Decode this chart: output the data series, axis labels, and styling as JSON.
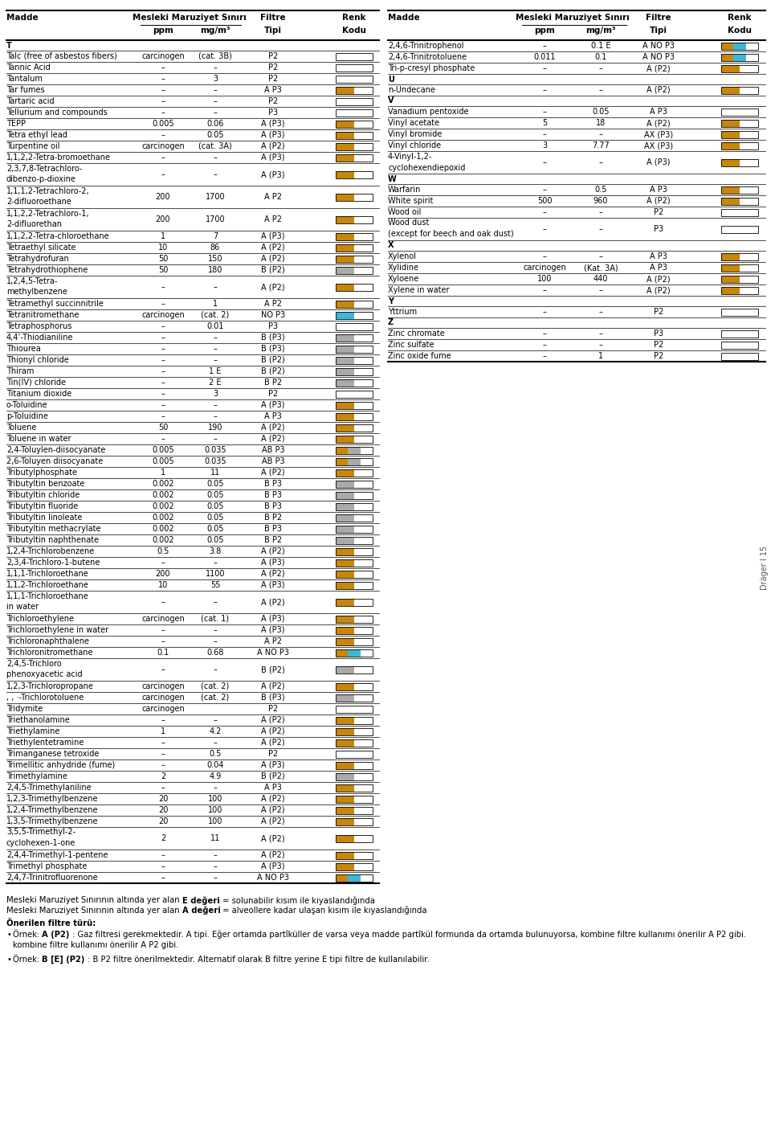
{
  "left_rows": [
    {
      "name": "T",
      "ppm": "",
      "mg": "",
      "filtre": "",
      "renk": "",
      "section": true
    },
    {
      "name": "Talc (free of asbestos fibers)",
      "ppm": "carcinogen",
      "mg": "(cat. 3B)",
      "filtre": "P2",
      "renk": "white"
    },
    {
      "name": "Tannic Acid",
      "ppm": "–",
      "mg": "–",
      "filtre": "P2",
      "renk": "white"
    },
    {
      "name": "Tantalum",
      "ppm": "–",
      "mg": "3",
      "filtre": "P2",
      "renk": "white"
    },
    {
      "name": "Tar fumes",
      "ppm": "–",
      "mg": "–",
      "filtre": "A P3",
      "renk": "brown_white"
    },
    {
      "name": "Tartaric acid",
      "ppm": "–",
      "mg": "–",
      "filtre": "P2",
      "renk": "white"
    },
    {
      "name": "Tellurium and compounds",
      "ppm": "–",
      "mg": "–",
      "filtre": "P3",
      "renk": "white"
    },
    {
      "name": "TEPP",
      "ppm": "0.005",
      "mg": "0.06",
      "filtre": "A (P3)",
      "renk": "brown_white"
    },
    {
      "name": "Tetra ethyl lead",
      "ppm": "–",
      "mg": "0.05",
      "filtre": "A (P3)",
      "renk": "brown_white"
    },
    {
      "name": "Turpentine oil",
      "ppm": "carcinogen",
      "mg": "(cat. 3A)",
      "filtre": "A (P2)",
      "renk": "brown_white"
    },
    {
      "name": "1,1,2,2-Tetra-bromoethane",
      "ppm": "–",
      "mg": "–",
      "filtre": "A (P3)",
      "renk": "brown_white"
    },
    {
      "name": "2,3,7,8-Tetrachloro-\ndibenzo-p-dioxine",
      "ppm": "–",
      "mg": "–",
      "filtre": "A (P3)",
      "renk": "brown_white"
    },
    {
      "name": "1,1,1,2-Tetrachloro-2,\n2-difluoroethane",
      "ppm": "200",
      "mg": "1700",
      "filtre": "A P2",
      "renk": "brown_white"
    },
    {
      "name": "1,1,2,2-Tetrachloro-1,\n2-difluorethan",
      "ppm": "200",
      "mg": "1700",
      "filtre": "A P2",
      "renk": "brown_white"
    },
    {
      "name": "1,1,2,2-Tetra-chloroethane",
      "ppm": "1",
      "mg": "7",
      "filtre": "A (P3)",
      "renk": "brown_white"
    },
    {
      "name": "Tetraethyl silicate",
      "ppm": "10",
      "mg": "86",
      "filtre": "A (P2)",
      "renk": "brown_white"
    },
    {
      "name": "Tetrahydrofuran",
      "ppm": "50",
      "mg": "150",
      "filtre": "A (P2)",
      "renk": "brown_white"
    },
    {
      "name": "Tetrahydrothiophene",
      "ppm": "50",
      "mg": "180",
      "filtre": "B (P2)",
      "renk": "gray_white"
    },
    {
      "name": "1,2,4,5-Tetra-\nmethylbenzene",
      "ppm": "–",
      "mg": "–",
      "filtre": "A (P2)",
      "renk": "brown_white"
    },
    {
      "name": "Tetramethyl succinnitrile",
      "ppm": "–",
      "mg": "1",
      "filtre": "A P2",
      "renk": "brown_white"
    },
    {
      "name": "Tetranitromethane",
      "ppm": "carcinogen",
      "mg": "(cat. 2)",
      "filtre": "NO P3",
      "renk": "blue_white"
    },
    {
      "name": "Tetraphosphorus",
      "ppm": "–",
      "mg": "0.01",
      "filtre": "P3",
      "renk": "white"
    },
    {
      "name": "4,4’-Thiodianiline",
      "ppm": "–",
      "mg": "–",
      "filtre": "B (P3)",
      "renk": "gray_white"
    },
    {
      "name": "Thiourea",
      "ppm": "–",
      "mg": "–",
      "filtre": "B (P3)",
      "renk": "gray_white"
    },
    {
      "name": "Thionyl chloride",
      "ppm": "–",
      "mg": "–",
      "filtre": "B (P2)",
      "renk": "gray_white"
    },
    {
      "name": "Thiram",
      "ppm": "–",
      "mg": "1 E",
      "filtre": "B (P2)",
      "renk": "gray_white"
    },
    {
      "name": "Tin(IV) chloride",
      "ppm": "–",
      "mg": "2 E",
      "filtre": "B P2",
      "renk": "gray_white"
    },
    {
      "name": "Titanium dioxide",
      "ppm": "–",
      "mg": "3",
      "filtre": "P2",
      "renk": "white"
    },
    {
      "name": "o-Toluidine",
      "ppm": "–",
      "mg": "–",
      "filtre": "A (P3)",
      "renk": "brown_white"
    },
    {
      "name": "p-Toluidine",
      "ppm": "–",
      "mg": "–",
      "filtre": "A P3",
      "renk": "brown_white"
    },
    {
      "name": "Toluene",
      "ppm": "50",
      "mg": "190",
      "filtre": "A (P2)",
      "renk": "brown_white"
    },
    {
      "name": "Toluene in water",
      "ppm": "–",
      "mg": "–",
      "filtre": "A (P2)",
      "renk": "brown_white"
    },
    {
      "name": "2,4-Toluylen-diisocyanate",
      "ppm": "0.005",
      "mg": "0.035",
      "filtre": "AB P3",
      "renk": "brown_gray_white"
    },
    {
      "name": "2,6-Toluyen diisocyanate",
      "ppm": "0.005",
      "mg": "0.035",
      "filtre": "AB P3",
      "renk": "brown_gray_white"
    },
    {
      "name": "Tributylphosphate",
      "ppm": "1",
      "mg": "11",
      "filtre": "A (P2)",
      "renk": "brown_white"
    },
    {
      "name": "Tributyltin benzoate",
      "ppm": "0.002",
      "mg": "0.05",
      "filtre": "B P3",
      "renk": "gray_white"
    },
    {
      "name": "Tributyltin chloride",
      "ppm": "0.002",
      "mg": "0.05",
      "filtre": "B P3",
      "renk": "gray_white"
    },
    {
      "name": "Tributyltin fluoride",
      "ppm": "0.002",
      "mg": "0.05",
      "filtre": "B P3",
      "renk": "gray_white"
    },
    {
      "name": "Tributyltin linoleate",
      "ppm": "0.002",
      "mg": "0.05",
      "filtre": "B P2",
      "renk": "gray_white"
    },
    {
      "name": "Tributyltin methacrylate",
      "ppm": "0.002",
      "mg": "0.05",
      "filtre": "B P3",
      "renk": "gray_white"
    },
    {
      "name": "Tributyltin naphthenate",
      "ppm": "0.002",
      "mg": "0.05",
      "filtre": "B P2",
      "renk": "gray_white"
    },
    {
      "name": "1,2,4-Trichlorobenzene",
      "ppm": "0.5",
      "mg": "3.8",
      "filtre": "A (P2)",
      "renk": "brown_white"
    },
    {
      "name": "2,3,4-Trichloro-1-butene",
      "ppm": "–",
      "mg": "–",
      "filtre": "A (P3)",
      "renk": "brown_white"
    },
    {
      "name": "1,1,1-Trichloroethane",
      "ppm": "200",
      "mg": "1100",
      "filtre": "A (P2)",
      "renk": "brown_white"
    },
    {
      "name": "1,1,2-Trichloroethane",
      "ppm": "10",
      "mg": "55",
      "filtre": "A (P3)",
      "renk": "brown_white"
    },
    {
      "name": "1,1,1-Trichloroethane\nin water",
      "ppm": "–",
      "mg": "–",
      "filtre": "A (P2)",
      "renk": "brown_white"
    },
    {
      "name": "Trichloroethylene",
      "ppm": "carcinogen",
      "mg": "(cat. 1)",
      "filtre": "A (P3)",
      "renk": "brown_white"
    },
    {
      "name": "Trichloroethylene in water",
      "ppm": "–",
      "mg": "–",
      "filtre": "A (P3)",
      "renk": "brown_white"
    },
    {
      "name": "Trichloronaphthalene",
      "ppm": "–",
      "mg": "–",
      "filtre": "A P2",
      "renk": "brown_white"
    },
    {
      "name": "Trichloronitromethane",
      "ppm": "0.1",
      "mg": "0.68",
      "filtre": "A NO P3",
      "renk": "brown_blue_white"
    },
    {
      "name": "2,4,5-Trichloro\nphenoxyacetic acid",
      "ppm": "–",
      "mg": "–",
      "filtre": "B (P2)",
      "renk": "gray_white"
    },
    {
      "name": "1,2,3-Trichloropropane",
      "ppm": "carcinogen",
      "mg": "(cat. 2)",
      "filtre": "A (P2)",
      "renk": "brown_white"
    },
    {
      "name": ", , ·-Trichlorotoluene",
      "ppm": "carcinogen",
      "mg": "(cat. 2)",
      "filtre": "B (P3)",
      "renk": "gray_white"
    },
    {
      "name": "Tridymite",
      "ppm": "carcinogen",
      "mg": "",
      "filtre": "P2",
      "renk": "white"
    },
    {
      "name": "Triethanolamine",
      "ppm": "–",
      "mg": "–",
      "filtre": "A (P2)",
      "renk": "brown_white"
    },
    {
      "name": "Triethylamine",
      "ppm": "1",
      "mg": "4.2",
      "filtre": "A (P2)",
      "renk": "brown_white"
    },
    {
      "name": "Triethylentetramine",
      "ppm": "–",
      "mg": "–",
      "filtre": "A (P2)",
      "renk": "brown_white"
    },
    {
      "name": "Trimanganese tetroxide",
      "ppm": "–",
      "mg": "0.5",
      "filtre": "P2",
      "renk": "white"
    },
    {
      "name": "Trimellitic anhydride (fume)",
      "ppm": "–",
      "mg": "0.04",
      "filtre": "A (P3)",
      "renk": "brown_white"
    },
    {
      "name": "Trimethylamine",
      "ppm": "2",
      "mg": "4.9",
      "filtre": "B (P2)",
      "renk": "gray_white"
    },
    {
      "name": "2,4,5-Trimethylaniline",
      "ppm": "–",
      "mg": "–",
      "filtre": "A P3",
      "renk": "brown_white"
    },
    {
      "name": "1,2,3-Trimethylbenzene",
      "ppm": "20",
      "mg": "100",
      "filtre": "A (P2)",
      "renk": "brown_white"
    },
    {
      "name": "1,2,4-Trimethylbenzene",
      "ppm": "20",
      "mg": "100",
      "filtre": "A (P2)",
      "renk": "brown_white"
    },
    {
      "name": "1,3,5-Trimethylbenzene",
      "ppm": "20",
      "mg": "100",
      "filtre": "A (P2)",
      "renk": "brown_white"
    },
    {
      "name": "3,5,5-Trimethyl-2-\ncyclohexen-1-one",
      "ppm": "2",
      "mg": "11",
      "filtre": "A (P2)",
      "renk": "brown_white"
    },
    {
      "name": "2,4,4-Trimethyl-1-pentene",
      "ppm": "–",
      "mg": "–",
      "filtre": "A (P2)",
      "renk": "brown_white"
    },
    {
      "name": "Trimethyl phosphate",
      "ppm": "–",
      "mg": "–",
      "filtre": "A (P3)",
      "renk": "brown_white"
    },
    {
      "name": "2,4,7-Trinitrofluorenone",
      "ppm": "–",
      "mg": "–",
      "filtre": "A NO P3",
      "renk": "brown_blue_white"
    }
  ],
  "right_rows": [
    {
      "name": "2,4,6-Trinitrophenol",
      "ppm": "–",
      "mg": "0.1 E",
      "filtre": "A NO P3",
      "renk": "brown_blue_white"
    },
    {
      "name": "2,4,6-Trinitrotoluene",
      "ppm": "0.011",
      "mg": "0.1",
      "filtre": "A NO P3",
      "renk": "brown_blue_white"
    },
    {
      "name": "Tri-p-cresyl phosphate",
      "ppm": "–",
      "mg": "–",
      "filtre": "A (P2)",
      "renk": "brown_white"
    },
    {
      "name": "U",
      "ppm": "",
      "mg": "",
      "filtre": "",
      "renk": "",
      "section": true
    },
    {
      "name": "n-Undecane",
      "ppm": "–",
      "mg": "–",
      "filtre": "A (P2)",
      "renk": "brown_white"
    },
    {
      "name": "V",
      "ppm": "",
      "mg": "",
      "filtre": "",
      "renk": "",
      "section": true
    },
    {
      "name": "Vanadium pentoxide",
      "ppm": "–",
      "mg": "0.05",
      "filtre": "A P3",
      "renk": "white"
    },
    {
      "name": "Vinyl acetate",
      "ppm": "5",
      "mg": "18",
      "filtre": "A (P2)",
      "renk": "brown_white"
    },
    {
      "name": "Vinyl bromide",
      "ppm": "–",
      "mg": "–",
      "filtre": "AX (P3)",
      "renk": "brown_white"
    },
    {
      "name": "Vinyl chloride",
      "ppm": "3",
      "mg": "7.77",
      "filtre": "AX (P3)",
      "renk": "brown_white"
    },
    {
      "name": "4-Vinyl-1,2-\ncyclohexendiepoxid",
      "ppm": "–",
      "mg": "–",
      "filtre": "A (P3)",
      "renk": "brown_white"
    },
    {
      "name": "W",
      "ppm": "",
      "mg": "",
      "filtre": "",
      "renk": "",
      "section": true
    },
    {
      "name": "Warfarin",
      "ppm": "–",
      "mg": "0.5",
      "filtre": "A P3",
      "renk": "brown_white"
    },
    {
      "name": "White spirit",
      "ppm": "500",
      "mg": "960",
      "filtre": "A (P2)",
      "renk": "brown_white"
    },
    {
      "name": "Wood oil",
      "ppm": "–",
      "mg": "–",
      "filtre": "P2",
      "renk": "white"
    },
    {
      "name": "Wood dust\n(except for beech and oak dust)",
      "ppm": "–",
      "mg": "–",
      "filtre": "P3",
      "renk": "white"
    },
    {
      "name": "X",
      "ppm": "",
      "mg": "",
      "filtre": "",
      "renk": "",
      "section": true
    },
    {
      "name": "Xylenol",
      "ppm": "–",
      "mg": "–",
      "filtre": "A P3",
      "renk": "brown_white"
    },
    {
      "name": "Xylidine",
      "ppm": "carcinogen",
      "mg": "(Kat. 3A)",
      "filtre": "A P3",
      "renk": "brown_white"
    },
    {
      "name": "Xyloene",
      "ppm": "100",
      "mg": "440",
      "filtre": "A (P2)",
      "renk": "brown_white"
    },
    {
      "name": "Xylene in water",
      "ppm": "–",
      "mg": "–",
      "filtre": "A (P2)",
      "renk": "brown_white"
    },
    {
      "name": "Y",
      "ppm": "",
      "mg": "",
      "filtre": "",
      "renk": "",
      "section": true
    },
    {
      "name": "Yttrium",
      "ppm": "–",
      "mg": "–",
      "filtre": "P2",
      "renk": "white"
    },
    {
      "name": "Z",
      "ppm": "",
      "mg": "",
      "filtre": "",
      "renk": "",
      "section": true
    },
    {
      "name": "Zinc chromate",
      "ppm": "–",
      "mg": "–",
      "filtre": "P3",
      "renk": "white"
    },
    {
      "name": "Zinc sulfate",
      "ppm": "–",
      "mg": "–",
      "filtre": "P2",
      "renk": "white"
    },
    {
      "name": "Zinc oxide fume",
      "ppm": "–",
      "mg": "1",
      "filtre": "P2",
      "renk": "white"
    }
  ],
  "footer_bold1": "Mesleki Maruziyet Sınırının altında yer alan ",
  "footer_bold1_key": "E değeri",
  "footer_bold1_rest": " = solunabilir kısım ile kıyaslandığında",
  "footer_bold2": "Mesleki Maruziyet Sınırının altında yer alan ",
  "footer_bold2_key": "A değeri",
  "footer_bold2_rest": " = alveollere kadar ulaşan kısım ile kıyaslandığında",
  "footer_title": "Önerilen filtre türü:",
  "footer_bullet1_pre": "Örnek: ",
  "footer_bullet1_bold": "A (P2)",
  "footer_bullet1_rest": " : Gaz filtresi gerekmektedir. A tipi. Eğer ortamda partïküller de varsa veya madde partïkül formunda da ortamda bulunuyorsa, kombine filtre kullanımı önerilir A P2 gibi.",
  "footer_bullet2_pre": "Örnek: ",
  "footer_bullet2_bold": "B [E] (P2)",
  "footer_bullet2_rest": " : B P2 filtre önerilmektedir. Alternatif olarak B filtre yerine E tipi filtre de kullanılabilir.",
  "watermark": "Dräger I 15",
  "brown": "#C8860A",
  "blue": "#3BB8D4",
  "gray": "#AAAAAA"
}
